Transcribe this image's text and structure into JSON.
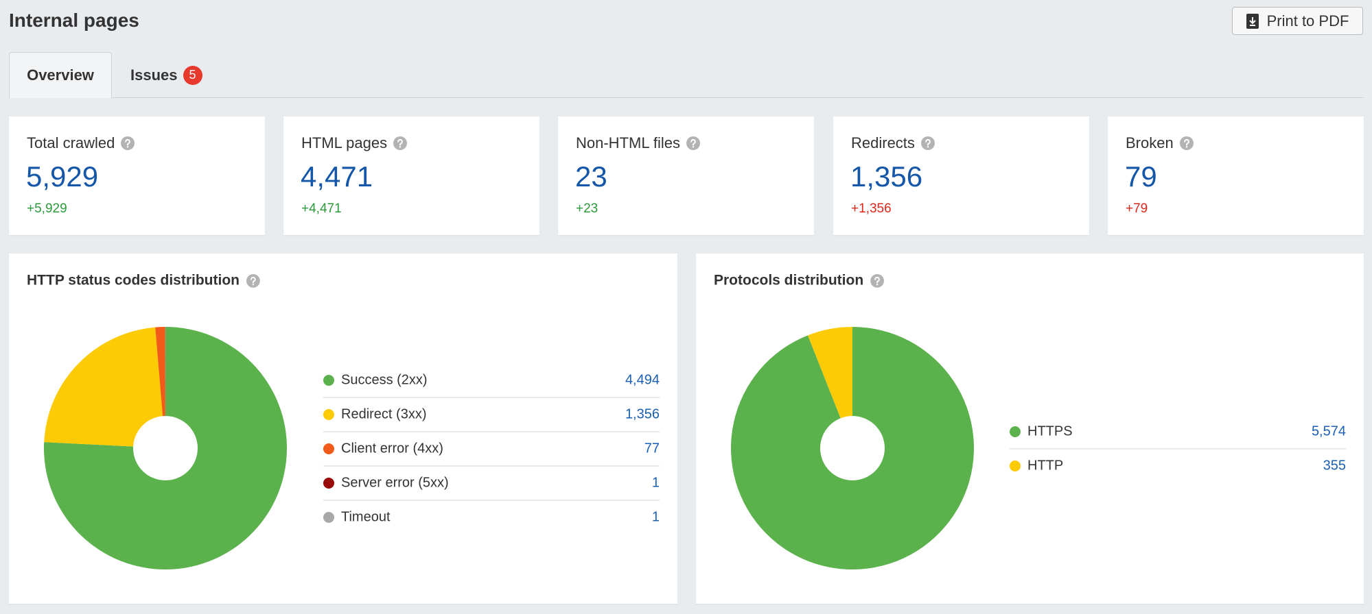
{
  "header": {
    "title": "Internal pages",
    "button": "Print to PDF"
  },
  "tabs": [
    {
      "label": "Overview"
    },
    {
      "label": "Issues",
      "badge": "5"
    }
  ],
  "cards": [
    {
      "label": "Total crawled",
      "value": "5,929",
      "change": "+5,929",
      "change_color": "#2a9a3a"
    },
    {
      "label": "HTML pages",
      "value": "4,471",
      "change": "+4,471",
      "change_color": "#2a9a3a"
    },
    {
      "label": "Non-HTML files",
      "value": "23",
      "change": "+23",
      "change_color": "#2a9a3a"
    },
    {
      "label": "Redirects",
      "value": "1,356",
      "change": "+1,356",
      "change_color": "#e0251b"
    },
    {
      "label": "Broken",
      "value": "79",
      "change": "+79",
      "change_color": "#e0251b"
    }
  ],
  "chart_data": [
    {
      "type": "pie",
      "title": "HTTP status codes distribution",
      "categories": [
        "Success (2xx)",
        "Redirect (3xx)",
        "Client error (4xx)",
        "Server error (5xx)",
        "Timeout"
      ],
      "values": [
        4494,
        1356,
        77,
        1,
        1
      ],
      "value_labels": [
        "4,494",
        "1,356",
        "77",
        "1",
        "1"
      ],
      "colors": [
        "#5bb14c",
        "#fdcb05",
        "#f25a1a",
        "#9b0a0a",
        "#a8a8a8"
      ]
    },
    {
      "type": "pie",
      "title": "Protocols distribution",
      "categories": [
        "HTTPS",
        "HTTP"
      ],
      "values": [
        5574,
        355
      ],
      "value_labels": [
        "5,574",
        "355"
      ],
      "colors": [
        "#5bb14c",
        "#fdcb05"
      ]
    }
  ]
}
